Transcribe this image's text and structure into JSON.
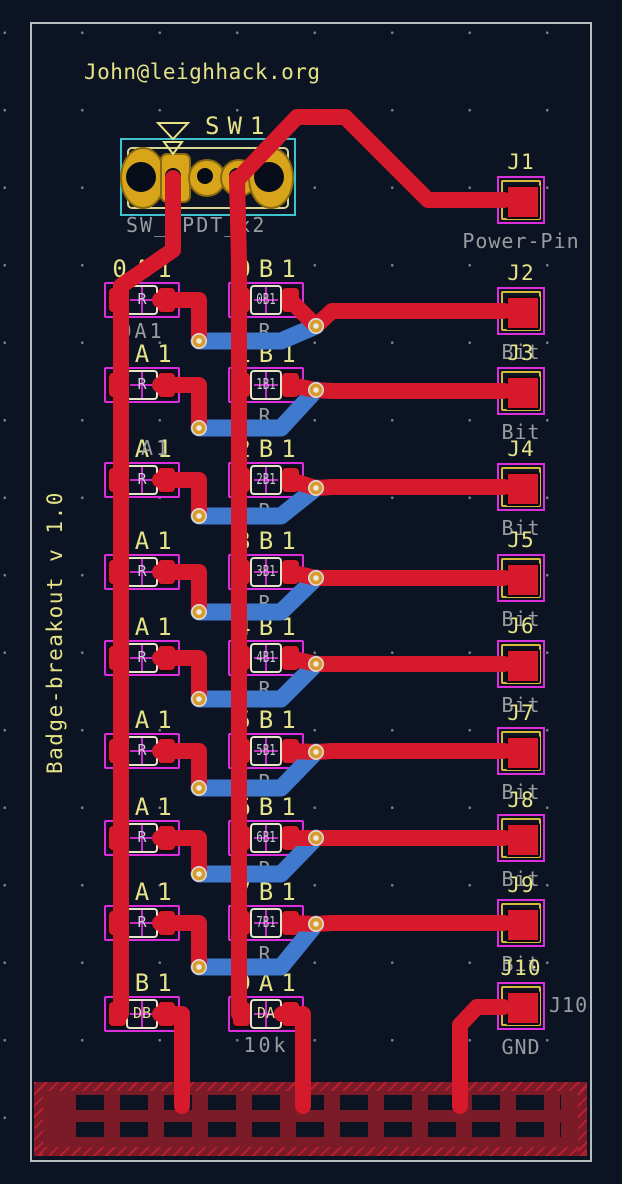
{
  "header": {
    "email": "John@leighhack.org"
  },
  "board": {
    "title": "Badge-breakout v 1.0"
  },
  "switch": {
    "ref": "SW1",
    "value": "SW_DPDT_x2"
  },
  "resistor_rows": [
    {
      "left_ref": "0A1",
      "left_body": "R",
      "left_sub": "0A1",
      "left_sub_overlay": "",
      "right_ref": "0B1",
      "right_body": "0B1",
      "right_sub": "R"
    },
    {
      "left_ref": "1A1",
      "left_body": "R",
      "left_sub": "",
      "left_sub_overlay": "",
      "right_ref": "1B1",
      "right_body": "1B1",
      "right_sub": "R"
    },
    {
      "left_ref": "2A1",
      "left_body": "R",
      "left_sub": "",
      "left_sub_overlay": "A1",
      "right_ref": "2B1",
      "right_body": "2B1",
      "right_sub": "R"
    },
    {
      "left_ref": "3A1",
      "left_body": "R",
      "left_sub": "",
      "left_sub_overlay": "",
      "right_ref": "3B1",
      "right_body": "3B1",
      "right_sub": "R"
    },
    {
      "left_ref": "4A1",
      "left_body": "R",
      "left_sub": "",
      "left_sub_overlay": "",
      "right_ref": "4B1",
      "right_body": "4B1",
      "right_sub": "R"
    },
    {
      "left_ref": "5A1",
      "left_body": "R",
      "left_sub": "",
      "left_sub_overlay": "",
      "right_ref": "5B1",
      "right_body": "5B1",
      "right_sub": "R"
    },
    {
      "left_ref": "6A1",
      "left_body": "R",
      "left_sub": "",
      "left_sub_overlay": "",
      "right_ref": "6B1",
      "right_body": "6B1",
      "right_sub": "R"
    },
    {
      "left_ref": "7A1",
      "left_body": "R",
      "left_sub": "",
      "left_sub_overlay": "",
      "right_ref": "7B1",
      "right_body": "7B1",
      "right_sub": "R"
    },
    {
      "left_ref": "DB1",
      "left_body": "DB",
      "left_sub": "",
      "left_sub_overlay": "",
      "right_ref": "DA1",
      "right_body": "DA",
      "right_sub": "10k"
    }
  ],
  "connectors": [
    {
      "ref": "J1",
      "label": "Power-Pin",
      "side_label": ""
    },
    {
      "ref": "J2",
      "label": "Bit",
      "side_label": ""
    },
    {
      "ref": "J3",
      "label": "Bit",
      "side_label": ""
    },
    {
      "ref": "J4",
      "label": "Bit",
      "side_label": ""
    },
    {
      "ref": "J5",
      "label": "Bit",
      "side_label": ""
    },
    {
      "ref": "J6",
      "label": "Bit",
      "side_label": ""
    },
    {
      "ref": "J7",
      "label": "Bit",
      "side_label": ""
    },
    {
      "ref": "J8",
      "label": "Bit",
      "side_label": ""
    },
    {
      "ref": "J9",
      "label": "Bit",
      "side_label": ""
    },
    {
      "ref": "J10",
      "label": "GND",
      "side_label": "J10"
    }
  ],
  "colors": {
    "background": "#0c1322",
    "trace_red": "#d61a2c",
    "trace_blue": "#3f7acf",
    "silk_yellow": "#e5e287",
    "fab_gray": "#9a9da0",
    "courtyard_magenta": "#dc2edc",
    "layer_cyan": "#3dc4ce",
    "via_gold": "#d89b2c",
    "zone_maroon": "#7c1b28",
    "board_outline": "#b9bdc0",
    "pad_gold": "#d8a41a"
  }
}
